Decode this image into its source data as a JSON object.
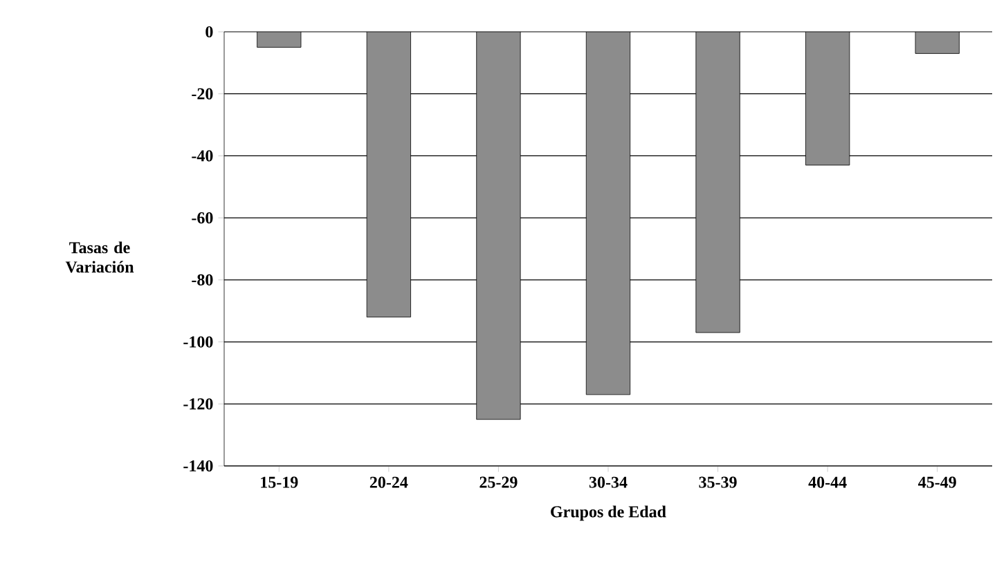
{
  "chart_data": {
    "type": "bar",
    "xlabel": "Grupos de Edad",
    "ylabel": "Tasas de Variación",
    "categories": [
      "15-19",
      "20-24",
      "25-29",
      "30-34",
      "35-39",
      "40-44",
      "45-49"
    ],
    "values": [
      -5,
      -92,
      -125,
      -117,
      -97,
      -43,
      -7
    ],
    "color": "#8c8c8c",
    "ylim": [
      -140,
      0
    ],
    "yticks": [
      -140,
      -120,
      -100,
      -80,
      -60,
      -40,
      -20,
      0
    ],
    "grid": "y"
  }
}
